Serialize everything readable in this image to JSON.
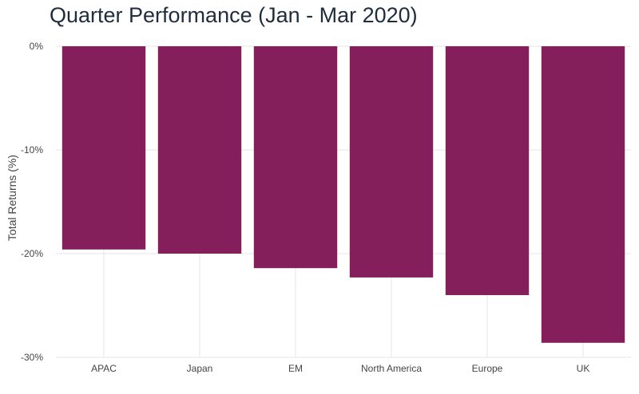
{
  "chart_data": {
    "type": "bar",
    "title": "Quarter Performance (Jan - Mar 2020)",
    "xlabel": "",
    "ylabel": "Total Returns (%)",
    "categories": [
      "APAC",
      "Japan",
      "EM",
      "North America",
      "Europe",
      "UK"
    ],
    "values": [
      -19.6,
      -20.0,
      -21.4,
      -22.3,
      -24.0,
      -28.6
    ],
    "ylim": [
      -30,
      0
    ],
    "yticks": [
      0,
      -10,
      -20,
      -30
    ],
    "ytick_labels": [
      "0%",
      "-10%",
      "-20%",
      "-30%"
    ],
    "grid": true,
    "bar_color": "#841f5c",
    "grid_color": "#e6e6e6"
  }
}
